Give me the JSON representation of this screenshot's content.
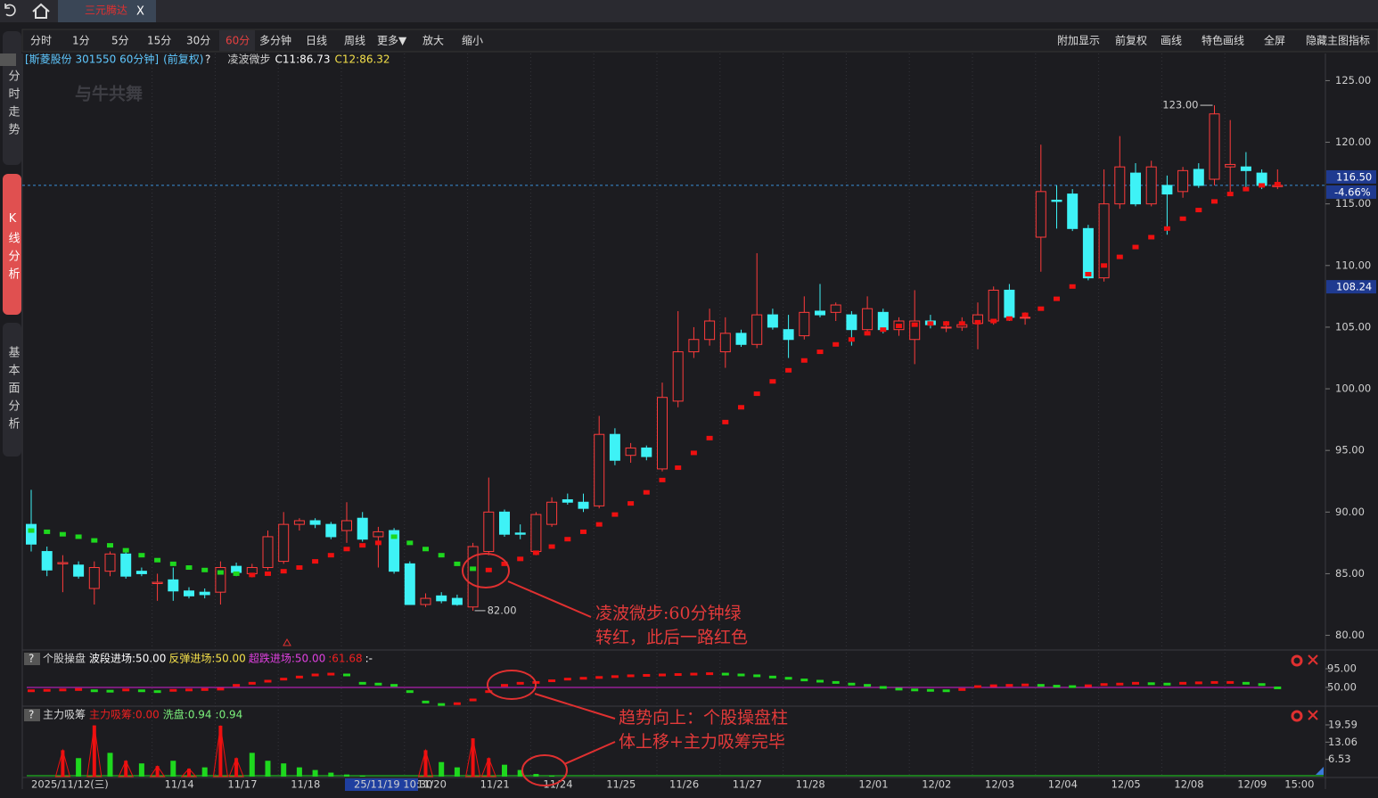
{
  "ui": {
    "tab_title": "三元腾达",
    "tab_close": "X",
    "logo": "与牛共舞",
    "help": "?",
    "toolbar_left": [
      "分时",
      "1分",
      "5分",
      "15分",
      "30分",
      "60分",
      "多分钟",
      "日线",
      "周线",
      "更多▼",
      "放大",
      "缩小"
    ],
    "toolbar_right": [
      "附加显示",
      "前复权",
      "画线",
      "特色画线",
      "全屏",
      "隐藏主图指标"
    ],
    "side_tabs": [
      "分时走势",
      "K线分析",
      "基本面分析"
    ]
  },
  "chart_data": [
    {
      "type": "candlestick",
      "title": "[斯菱股份 301550 60分钟]",
      "subtitle": "(前复权)",
      "indicator": "凌波微步",
      "up_color": "#ff3b3b",
      "down_color": "#3ef2f6",
      "crosshair_at": 20,
      "categories": [
        "2025/11/12(三)",
        null,
        null,
        null,
        null,
        null,
        null,
        null,
        "11/14",
        null,
        null,
        null,
        "11/17",
        null,
        null,
        null,
        "11/18",
        null,
        null,
        null,
        "25/11/19 10:30",
        null,
        null,
        null,
        "11/20",
        null,
        null,
        null,
        "11/21",
        null,
        null,
        null,
        "11/24",
        null,
        null,
        null,
        "11/25",
        null,
        null,
        null,
        "11/26",
        null,
        null,
        null,
        "11/27",
        null,
        null,
        null,
        "11/28",
        null,
        null,
        null,
        "12/01",
        null,
        null,
        null,
        "12/02",
        null,
        null,
        null,
        "12/03",
        null,
        null,
        null,
        "12/04",
        null,
        null,
        null,
        "12/05",
        null,
        null,
        null,
        "12/08",
        null,
        null,
        null,
        "12/09",
        null,
        null,
        "15:00"
      ],
      "open": [
        89.0,
        86.8,
        85.8,
        85.7,
        83.8,
        85.2,
        86.6,
        85.2,
        84.2,
        84.5,
        83.6,
        83.5,
        83.5,
        85.6,
        85.0,
        85.5,
        86.0,
        89.0,
        89.3,
        89.0,
        88.5,
        89.5,
        88.0,
        88.5,
        85.8,
        82.5,
        83.2,
        83.0,
        82.3,
        86.8,
        90.0,
        88.3,
        86.8,
        89.0,
        91.0,
        90.8,
        90.5,
        96.3,
        94.6,
        95.2,
        93.5,
        99.0,
        103.0,
        104.0,
        103.0,
        104.5,
        103.6,
        106.0,
        104.8,
        104.3,
        106.3,
        106.2,
        106.0,
        104.8,
        106.2,
        104.8,
        104.0,
        105.5,
        105.0,
        105.0,
        105.3,
        105.5,
        108.0,
        105.8,
        112.3,
        115.3,
        115.8,
        113.0,
        109.0,
        115.0,
        117.5,
        115.0,
        116.5,
        116.0,
        117.8,
        117.0,
        118.0,
        118.0,
        117.5,
        116.4
      ],
      "high": [
        91.8,
        87.2,
        86.5,
        86.0,
        86.0,
        86.8,
        87.0,
        85.5,
        85.0,
        85.5,
        83.9,
        83.8,
        86.0,
        85.9,
        85.8,
        88.5,
        90.0,
        89.5,
        89.5,
        89.2,
        90.8,
        90.0,
        88.8,
        88.7,
        86.0,
        83.4,
        83.5,
        83.3,
        87.5,
        92.8,
        90.2,
        89.0,
        90.0,
        91.2,
        91.5,
        91.5,
        97.8,
        96.8,
        95.6,
        95.4,
        100.5,
        106.3,
        105.0,
        106.5,
        105.8,
        104.8,
        111.0,
        106.5,
        106.0,
        107.5,
        108.5,
        107.0,
        106.3,
        107.5,
        106.5,
        105.8,
        108.0,
        106.0,
        105.5,
        105.8,
        107.0,
        108.3,
        108.5,
        106.2,
        119.8,
        116.5,
        116.2,
        113.3,
        117.8,
        120.5,
        118.3,
        118.5,
        117.3,
        118.0,
        118.3,
        123.0,
        121.8,
        119.2,
        117.8,
        117.8
      ],
      "low": [
        86.8,
        84.8,
        83.5,
        84.6,
        82.5,
        84.8,
        84.6,
        84.8,
        82.8,
        82.8,
        83.0,
        83.0,
        82.5,
        84.8,
        84.7,
        85.3,
        85.8,
        88.5,
        88.7,
        87.8,
        87.5,
        87.6,
        85.5,
        85.0,
        82.5,
        82.3,
        82.6,
        82.4,
        82.0,
        86.5,
        88.0,
        87.8,
        86.5,
        88.8,
        90.6,
        90.0,
        90.3,
        93.8,
        94.0,
        94.2,
        93.3,
        98.5,
        102.5,
        103.5,
        101.7,
        103.4,
        103.3,
        104.8,
        102.5,
        104.0,
        105.8,
        105.5,
        103.5,
        104.5,
        104.5,
        104.3,
        102.0,
        104.9,
        104.6,
        104.7,
        103.2,
        105.2,
        105.5,
        105.2,
        109.5,
        113.0,
        112.8,
        108.8,
        108.7,
        114.6,
        114.8,
        114.8,
        112.5,
        115.5,
        116.3,
        116.5,
        115.8,
        116.3,
        116.2,
        116.2
      ],
      "close": [
        87.4,
        85.3,
        85.9,
        84.8,
        85.5,
        86.6,
        84.8,
        85.0,
        84.3,
        83.6,
        83.2,
        83.3,
        85.5,
        85.1,
        85.5,
        88.0,
        89.0,
        89.3,
        89.0,
        88.0,
        89.3,
        87.8,
        88.4,
        85.2,
        82.5,
        83.0,
        82.8,
        82.5,
        87.2,
        90.0,
        88.2,
        88.2,
        89.8,
        90.8,
        90.8,
        90.3,
        96.3,
        94.2,
        95.2,
        94.5,
        99.3,
        103.0,
        104.0,
        105.5,
        104.5,
        103.6,
        106.0,
        105.0,
        104.0,
        106.2,
        106.0,
        106.8,
        104.8,
        106.5,
        104.8,
        105.5,
        105.5,
        105.2,
        105.0,
        105.2,
        106.0,
        108.0,
        105.8,
        105.8,
        116.0,
        115.2,
        113.0,
        109.0,
        115.0,
        118.0,
        115.0,
        118.0,
        115.8,
        117.7,
        116.5,
        122.3,
        118.2,
        117.7,
        116.5,
        116.5
      ],
      "series": [
        {
          "name": "C11:86.73",
          "color": "#1ed81e",
          "values": [
            88.5,
            88.4,
            88.2,
            88.0,
            87.7,
            87.3,
            86.9,
            86.5,
            86.1,
            85.8,
            85.5,
            85.3,
            85.1,
            85.0,
            null,
            null,
            null,
            null,
            null,
            null,
            null,
            null,
            null,
            88.0,
            87.5,
            87.0,
            86.5,
            85.8,
            85.4,
            null,
            null,
            null,
            null,
            null,
            null,
            null,
            null,
            null,
            null,
            null,
            null,
            null,
            null,
            null,
            null,
            null,
            null,
            null,
            null,
            null,
            null,
            null,
            null,
            null,
            null,
            null,
            null,
            null,
            null,
            null,
            null,
            null,
            null,
            null,
            null,
            null,
            null,
            null,
            null,
            null,
            null,
            null,
            null,
            null,
            null,
            null,
            null,
            null,
            null,
            null
          ]
        },
        {
          "name": "C12:86.32",
          "color": "#ee1010",
          "values": [
            null,
            null,
            null,
            null,
            null,
            null,
            null,
            null,
            null,
            null,
            null,
            null,
            null,
            null,
            84.9,
            85.0,
            85.2,
            85.5,
            86.0,
            86.5,
            87.0,
            87.3,
            87.5,
            null,
            null,
            null,
            null,
            null,
            null,
            85.3,
            85.8,
            86.2,
            86.7,
            87.2,
            87.8,
            88.4,
            89.0,
            89.8,
            90.7,
            91.6,
            92.6,
            93.6,
            94.8,
            96.0,
            97.3,
            98.5,
            99.6,
            100.6,
            101.5,
            102.3,
            103.0,
            103.6,
            104.0,
            104.5,
            104.8,
            105.1,
            105.2,
            105.3,
            105.3,
            105.3,
            105.4,
            105.5,
            105.7,
            106.0,
            106.5,
            107.3,
            108.3,
            109.3,
            110.0,
            110.7,
            111.5,
            112.3,
            113.0,
            113.8,
            114.5,
            115.2,
            115.8,
            116.2,
            116.5,
            116.6
          ]
        }
      ],
      "ylim": [
        79.1,
        127.2
      ],
      "yticks": [
        {
          "value": 80,
          "label": "80.00"
        },
        {
          "value": 85,
          "label": "85.00"
        },
        {
          "value": 90,
          "label": "90.00"
        },
        {
          "value": 95,
          "label": "95.00"
        },
        {
          "value": 100,
          "label": "100.00"
        },
        {
          "value": 105,
          "label": "105.00"
        },
        {
          "value": 110,
          "label": "110.00"
        },
        {
          "value": 115,
          "label": "115.00"
        },
        {
          "value": 120,
          "label": "120.00"
        },
        {
          "value": 125,
          "label": "125.00"
        }
      ],
      "last_price": {
        "value": 116.5,
        "label": "116.50"
      },
      "change_label": "-4.66%",
      "level_tag": {
        "value": 108.24,
        "label": "108.24"
      },
      "high_label": {
        "value": 123.0,
        "label": "123.00"
      },
      "low_label": {
        "value": 82.0,
        "label": "82.00"
      },
      "annotations": [
        "凌波微步:60分钟绿",
        "转红，此后一路红色",
        "趋势向上：个股操盘柱",
        "体上移+主力吸筹完毕"
      ]
    },
    {
      "type": "dash",
      "title": "个股操盘",
      "readouts": [
        "波段进场:50.00",
        "反弹进场:50.00",
        "超跌进场:50.00",
        ":61.68",
        ":-"
      ],
      "up_color": "#ee1010",
      "down_color": "#1ed81e",
      "baseline": 50,
      "baseline_color": "#d020d0",
      "values": [
        42,
        43,
        44,
        45,
        42,
        41,
        44,
        42,
        40,
        43,
        44,
        45,
        46,
        55,
        60,
        65,
        70,
        75,
        80,
        82,
        80,
        60,
        58,
        55,
        40,
        15,
        9,
        11,
        20,
        40,
        55,
        60,
        62,
        66,
        70,
        72,
        74,
        76,
        78,
        79,
        80,
        81,
        82,
        83,
        82,
        80,
        78,
        75,
        72,
        68,
        65,
        62,
        58,
        55,
        50,
        46,
        44,
        43,
        42,
        45,
        52,
        54,
        55,
        56,
        55,
        53,
        52,
        54,
        57,
        58,
        60,
        59,
        58,
        60,
        61,
        62,
        62,
        60,
        57,
        49
      ],
      "ylim": [
        5,
        105.7
      ],
      "yticks": [
        {
          "value": 95,
          "label": "95.00"
        },
        {
          "value": 50,
          "label": "50.00"
        }
      ]
    },
    {
      "type": "spike",
      "title": "主力吸筹",
      "readouts": [
        "主力吸筹:0.00",
        "洗盘:0.94",
        ":0.94"
      ],
      "series": [
        {
          "name": "主力吸筹",
          "color": "#ee1010",
          "values": [
            0,
            0,
            10,
            0,
            19.4,
            0,
            6,
            0,
            4,
            0,
            3,
            0,
            19.3,
            7,
            0,
            0,
            0,
            0,
            0,
            0,
            0,
            0,
            0,
            0,
            0,
            10,
            0,
            0,
            14.5,
            7,
            0,
            0,
            0,
            0,
            0,
            0,
            0,
            0,
            0,
            0,
            0,
            0,
            0,
            0,
            0,
            0,
            0,
            0,
            0,
            0,
            0,
            0,
            0,
            0,
            0,
            0,
            0,
            0,
            0,
            0,
            0,
            0,
            0,
            0,
            0,
            0,
            0,
            0,
            0,
            0,
            0,
            0,
            0,
            0,
            0,
            0,
            0,
            0,
            0,
            0
          ]
        },
        {
          "name": "洗盘",
          "color": "#1ed81e",
          "values": [
            0,
            0,
            0,
            7,
            0,
            9,
            0,
            5,
            0,
            6,
            0,
            3.5,
            0,
            0,
            9,
            6,
            5,
            3.5,
            2.5,
            1.5,
            0.8,
            0.4,
            0,
            0,
            0,
            0,
            5.5,
            3.5,
            0,
            0,
            4.5,
            2.5,
            1,
            0.5,
            0,
            0,
            0,
            0,
            0,
            0,
            0,
            0,
            0,
            0,
            0,
            0,
            0,
            0,
            0,
            0,
            0,
            0,
            0,
            0,
            0,
            0,
            0,
            0,
            0,
            0,
            0,
            0,
            0,
            0,
            0,
            0,
            0,
            0,
            0,
            0,
            0,
            0,
            0,
            0,
            0,
            0,
            0,
            0,
            0,
            0
          ]
        }
      ],
      "ylim": [
        0,
        25
      ],
      "yticks": [
        19.59,
        13.06,
        6.53
      ]
    }
  ]
}
